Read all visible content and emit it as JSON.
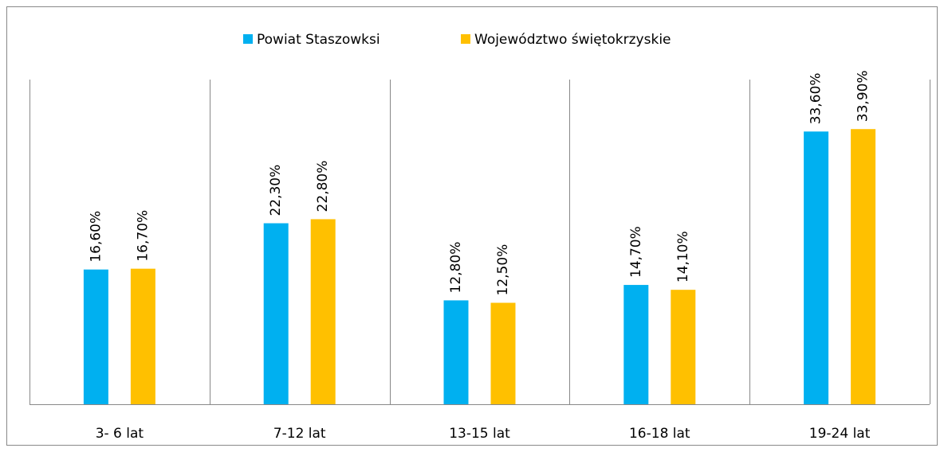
{
  "chart_data": {
    "type": "bar",
    "categories": [
      "3- 6 lat",
      "7-12 lat",
      "13-15 lat",
      "16-18 lat",
      "19-24 lat"
    ],
    "series": [
      {
        "name": "Powiat Staszowksi",
        "color": "#00b0f0",
        "values": [
          16.6,
          22.3,
          12.8,
          14.7,
          33.6
        ],
        "value_labels": [
          "16,60%",
          "22,30%",
          "12,80%",
          "14,70%",
          "33,60%"
        ]
      },
      {
        "name": "Województwo świętokrzyskie",
        "color": "#ffc000",
        "values": [
          16.7,
          22.8,
          12.5,
          14.1,
          33.9
        ],
        "value_labels": [
          "16,70%",
          "22,80%",
          "12,50%",
          "14,10%",
          "33,90%"
        ]
      }
    ],
    "ylim": [
      0,
      40
    ],
    "legend": "top"
  }
}
